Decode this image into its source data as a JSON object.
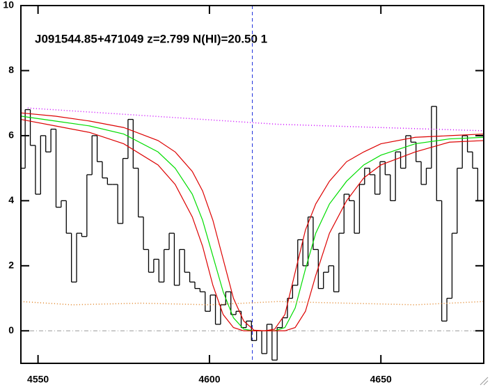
{
  "chart_data": {
    "type": "line",
    "title": "J091544.85+471049 z=2.799 N(HI)=20.50 1",
    "xlim": [
      4545,
      4680
    ],
    "ylim": [
      -1,
      10
    ],
    "xticks": [
      4550,
      4600,
      4650
    ],
    "yticks": [
      0,
      2,
      4,
      6,
      8,
      10
    ],
    "hline": 0,
    "vline": 4612.5,
    "series": [
      {
        "style": "steps",
        "color": "#000000",
        "x": [
          4545.5,
          4547,
          4548.5,
          4550,
          4551.5,
          4553,
          4554.5,
          4556,
          4557.5,
          4559,
          4560.5,
          4562,
          4563.5,
          4565,
          4566.5,
          4568,
          4569.5,
          4571,
          4572.5,
          4574,
          4575.5,
          4577,
          4578.5,
          4580,
          4581.5,
          4583,
          4584.5,
          4586,
          4587.5,
          4589,
          4590.5,
          4592,
          4593.5,
          4595,
          4596.5,
          4598,
          4599.5,
          4601,
          4602.5,
          4604,
          4605.5,
          4607,
          4608.5,
          4610,
          4611.5,
          4613,
          4614.5,
          4616,
          4617.5,
          4619,
          4620.5,
          4622,
          4623.5,
          4625,
          4626.5,
          4628,
          4629.5,
          4631,
          4632.5,
          4634,
          4635.5,
          4637,
          4638.5,
          4640,
          4641.5,
          4643,
          4644.5,
          4646,
          4647.5,
          4649,
          4650.5,
          4652,
          4653.5,
          4655,
          4656.5,
          4658,
          4659.5,
          4661,
          4662.5,
          4664,
          4665.5,
          4667,
          4668.5,
          4670,
          4671.5,
          4673,
          4674.5,
          4676,
          4677.5,
          4679
        ],
        "values": [
          5.0,
          6.8,
          5.7,
          4.2,
          6.0,
          5.5,
          6.2,
          3.8,
          4.0,
          3.0,
          1.5,
          3.0,
          2.9,
          4.8,
          6.0,
          5.2,
          4.7,
          4.5,
          4.5,
          3.3,
          5.3,
          6.5,
          5.0,
          3.5,
          2.5,
          1.8,
          2.2,
          1.5,
          2.5,
          3.0,
          1.4,
          2.5,
          1.8,
          1.5,
          1.3,
          1.2,
          0.6,
          1.1,
          0.2,
          0.8,
          1.2,
          0.5,
          0.6,
          0.1,
          0.3,
          -0.3,
          0.0,
          -0.7,
          0.2,
          -0.9,
          0.1,
          0.4,
          1.0,
          1.4,
          2.8,
          2.0,
          3.5,
          2.5,
          1.3,
          1.8,
          2.0,
          1.2,
          3.0,
          4.2,
          4.0,
          3.0,
          4.5,
          5.0,
          4.8,
          4.2,
          5.2,
          4.8,
          4.0,
          5.5,
          5.0,
          6.0,
          5.8,
          5.2,
          4.5,
          5.0,
          6.9,
          4.0,
          0.3,
          1.0,
          3.0,
          5.0,
          6.0,
          5.5,
          5.0,
          4.0
        ]
      },
      {
        "style": "solid",
        "color": "#00dd00",
        "x": [
          4545,
          4555,
          4565,
          4575,
          4585,
          4590,
          4595,
          4598,
          4601,
          4604,
          4607,
          4610,
          4613,
          4616,
          4619,
          4622,
          4625,
          4628,
          4631,
          4635,
          4640,
          4645,
          4650,
          4660,
          4670,
          4680
        ],
        "values": [
          6.6,
          6.45,
          6.3,
          6.05,
          5.5,
          5.0,
          4.2,
          3.4,
          2.3,
          1.2,
          0.4,
          0.05,
          0,
          0,
          0,
          0.1,
          0.7,
          1.9,
          3.0,
          3.9,
          4.6,
          5.1,
          5.4,
          5.75,
          5.9,
          5.95
        ]
      },
      {
        "style": "solid",
        "color": "#dd0000",
        "x": [
          4545,
          4555,
          4565,
          4575,
          4585,
          4590,
          4595,
          4598,
          4601,
          4604,
          4607,
          4610,
          4613,
          4616,
          4619,
          4622,
          4625,
          4628,
          4631,
          4635,
          4640,
          4645,
          4650,
          4660,
          4670,
          4680
        ],
        "values": [
          6.7,
          6.6,
          6.45,
          6.25,
          5.85,
          5.5,
          4.9,
          4.3,
          3.4,
          2.2,
          1.0,
          0.3,
          0.02,
          0,
          0.05,
          0.5,
          1.8,
          3.1,
          3.9,
          4.6,
          5.2,
          5.5,
          5.75,
          5.95,
          6.0,
          6.05
        ]
      },
      {
        "style": "solid",
        "color": "#dd0000",
        "x": [
          4545,
          4555,
          4565,
          4575,
          4585,
          4590,
          4595,
          4598,
          4601,
          4604,
          4607,
          4610,
          4613,
          4616,
          4619,
          4622,
          4625,
          4628,
          4631,
          4635,
          4640,
          4645,
          4650,
          4660,
          4670,
          4680
        ],
        "values": [
          6.5,
          6.3,
          6.1,
          5.75,
          5.1,
          4.5,
          3.5,
          2.6,
          1.4,
          0.5,
          0.1,
          0,
          0,
          0,
          0,
          0,
          0.1,
          0.6,
          1.7,
          3.0,
          4.0,
          4.7,
          5.1,
          5.5,
          5.8,
          5.85
        ]
      },
      {
        "style": "dotted",
        "color": "#cc00ff",
        "x": [
          4547,
          4620,
          4680
        ],
        "values": [
          6.85,
          6.35,
          6.15
        ]
      },
      {
        "style": "dotted",
        "color": "#e08020",
        "x": [
          4545,
          4560,
          4580,
          4600,
          4620,
          4640,
          4660,
          4680
        ],
        "values": [
          0.9,
          0.8,
          0.85,
          0.8,
          0.9,
          0.85,
          0.8,
          0.9
        ]
      }
    ]
  }
}
